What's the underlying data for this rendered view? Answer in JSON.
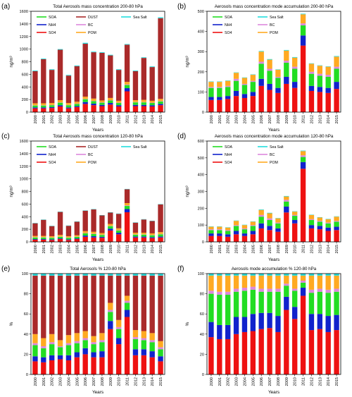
{
  "figure": {
    "background": "#ffffff"
  },
  "colors": {
    "SO4": "#ee1111",
    "NH4": "#1122cc",
    "SOA": "#22dd22",
    "BC": "#dd88dd",
    "POM": "#ffaa22",
    "DUST": "#aa2a2a",
    "Sea Salt": "#22dddd"
  },
  "chart_data": [
    {
      "label": "(a)",
      "type": "bar",
      "stacked": true,
      "title": "Total Aerosols mass concentration 200-80 hPa",
      "xlabel": "Years",
      "ylabel": "ng/m³",
      "ylim": [
        0,
        1600
      ],
      "yticks": [
        0,
        200,
        400,
        600,
        800,
        1000,
        1200,
        1400,
        1600
      ],
      "categories": [
        "2000",
        "2001",
        "2002",
        "2003",
        "2004",
        "2005",
        "2006",
        "2007",
        "2008",
        "2009",
        "2010",
        "2011",
        "2012",
        "2013",
        "2014",
        "2015"
      ],
      "legend": [
        [
          "SOA",
          "DUST",
          "Sea Salt"
        ],
        [
          "NH4",
          "BC",
          ""
        ],
        [
          "SO4",
          "POM",
          ""
        ]
      ],
      "series": [
        {
          "name": "SO4",
          "values": [
            60,
            60,
            65,
            90,
            60,
            80,
            130,
            110,
            95,
            120,
            90,
            330,
            95,
            95,
            90,
            110
          ]
        },
        {
          "name": "NH4",
          "values": [
            15,
            15,
            15,
            20,
            15,
            15,
            30,
            25,
            20,
            25,
            20,
            50,
            20,
            20,
            20,
            20
          ]
        },
        {
          "name": "SOA",
          "values": [
            30,
            30,
            30,
            40,
            35,
            35,
            45,
            40,
            35,
            40,
            35,
            50,
            40,
            40,
            35,
            40
          ]
        },
        {
          "name": "BC",
          "values": [
            5,
            5,
            5,
            5,
            5,
            5,
            5,
            5,
            5,
            5,
            5,
            10,
            5,
            5,
            5,
            5
          ]
        },
        {
          "name": "POM",
          "values": [
            30,
            30,
            30,
            35,
            30,
            30,
            35,
            35,
            30,
            35,
            30,
            40,
            30,
            35,
            30,
            35
          ]
        },
        {
          "name": "DUST",
          "values": [
            510,
            700,
            525,
            800,
            435,
            565,
            840,
            735,
            755,
            675,
            490,
            590,
            460,
            665,
            535,
            1280
          ]
        },
        {
          "name": "Sea Salt",
          "values": [
            10,
            10,
            10,
            10,
            10,
            10,
            15,
            10,
            10,
            10,
            10,
            10,
            10,
            10,
            10,
            15
          ]
        }
      ]
    },
    {
      "label": "(b)",
      "type": "bar",
      "stacked": true,
      "title": "Aerosols mass concentration mode accumulation 200-80 hPa",
      "xlabel": "Years",
      "ylabel": "ng/m³",
      "ylim": [
        0,
        500
      ],
      "yticks": [
        0,
        100,
        200,
        300,
        400,
        500
      ],
      "categories": [
        "2000",
        "2001",
        "2002",
        "2003",
        "2004",
        "2005",
        "2006",
        "2007",
        "2008",
        "2009",
        "2010",
        "2011",
        "2012",
        "2013",
        "2014",
        "2015"
      ],
      "legend": [
        [
          "SOA",
          "Sea Salt"
        ],
        [
          "NH4",
          "BC"
        ],
        [
          "SO4",
          "POM"
        ]
      ],
      "series": [
        {
          "name": "SO4",
          "values": [
            60,
            60,
            65,
            80,
            70,
            80,
            130,
            110,
            95,
            140,
            120,
            330,
            105,
            100,
            95,
            115
          ]
        },
        {
          "name": "NH4",
          "values": [
            15,
            15,
            15,
            25,
            20,
            20,
            35,
            30,
            25,
            35,
            30,
            50,
            25,
            25,
            25,
            35
          ]
        },
        {
          "name": "SOA",
          "values": [
            45,
            45,
            45,
            50,
            45,
            50,
            75,
            65,
            50,
            70,
            65,
            50,
            60,
            55,
            55,
            65
          ]
        },
        {
          "name": "BC",
          "values": [
            5,
            5,
            5,
            10,
            5,
            5,
            10,
            10,
            5,
            10,
            10,
            10,
            10,
            10,
            10,
            10
          ]
        },
        {
          "name": "POM",
          "values": [
            25,
            25,
            25,
            30,
            30,
            30,
            50,
            45,
            35,
            50,
            45,
            45,
            40,
            40,
            40,
            50
          ]
        },
        {
          "name": "Sea Salt",
          "values": [
            2,
            2,
            2,
            2,
            2,
            2,
            3,
            3,
            2,
            3,
            3,
            3,
            2,
            2,
            2,
            3
          ]
        }
      ]
    },
    {
      "label": "(c)",
      "type": "bar",
      "stacked": true,
      "title": "Total Aerosols mass concentration 120-80 hPa",
      "xlabel": "Years",
      "ylabel": "ng/m³",
      "ylim": [
        0,
        1600
      ],
      "yticks": [
        0,
        200,
        400,
        600,
        800,
        1000,
        1200,
        1400,
        1600
      ],
      "categories": [
        "2000",
        "2001",
        "2002",
        "2003",
        "2004",
        "2005",
        "2006",
        "2007",
        "2008",
        "2009",
        "2010",
        "2011",
        "2012",
        "2013",
        "2014",
        "2015"
      ],
      "legend": [
        [
          "SOA",
          "DUST",
          "Sea Salt"
        ],
        [
          "NH4",
          "BC",
          ""
        ],
        [
          "SO4",
          "POM",
          ""
        ]
      ],
      "series": [
        {
          "name": "SO4",
          "values": [
            35,
            35,
            30,
            45,
            30,
            45,
            80,
            70,
            65,
            180,
            120,
            470,
            70,
            70,
            60,
            70
          ]
        },
        {
          "name": "NH4",
          "values": [
            10,
            10,
            10,
            10,
            10,
            10,
            20,
            20,
            15,
            30,
            25,
            50,
            15,
            15,
            15,
            15
          ]
        },
        {
          "name": "SOA",
          "values": [
            25,
            25,
            25,
            25,
            25,
            25,
            35,
            35,
            30,
            40,
            35,
            50,
            30,
            30,
            30,
            35
          ]
        },
        {
          "name": "BC",
          "values": [
            5,
            5,
            5,
            5,
            5,
            5,
            5,
            5,
            5,
            5,
            5,
            10,
            5,
            5,
            5,
            5
          ]
        },
        {
          "name": "POM",
          "values": [
            20,
            20,
            20,
            25,
            20,
            20,
            30,
            30,
            25,
            30,
            30,
            35,
            25,
            25,
            25,
            30
          ]
        },
        {
          "name": "DUST",
          "values": [
            200,
            255,
            160,
            365,
            165,
            215,
            325,
            355,
            280,
            180,
            230,
            220,
            160,
            210,
            195,
            440
          ]
        },
        {
          "name": "Sea Salt",
          "values": [
            5,
            5,
            5,
            5,
            5,
            5,
            5,
            5,
            5,
            5,
            5,
            5,
            5,
            5,
            5,
            5
          ]
        }
      ]
    },
    {
      "label": "(d)",
      "type": "bar",
      "stacked": true,
      "title": "Aerosols mass concentration mode accumulation 120-80 hPa",
      "xlabel": "Years",
      "ylabel": "ng/m³",
      "ylim": [
        0,
        600
      ],
      "yticks": [
        0,
        100,
        200,
        300,
        400,
        500,
        600
      ],
      "categories": [
        "2000",
        "2001",
        "2002",
        "2003",
        "2004",
        "2005",
        "2006",
        "2007",
        "2008",
        "2009",
        "2010",
        "2011",
        "2012",
        "2013",
        "2014",
        "2015"
      ],
      "legend": [
        [
          "SOA",
          "Sea Salt"
        ],
        [
          "NH4",
          "BC"
        ],
        [
          "SO4",
          "POM"
        ]
      ],
      "series": [
        {
          "name": "SO4",
          "values": [
            35,
            35,
            30,
            45,
            35,
            45,
            80,
            70,
            60,
            175,
            110,
            435,
            80,
            75,
            65,
            70
          ]
        },
        {
          "name": "NH4",
          "values": [
            15,
            15,
            15,
            20,
            15,
            20,
            30,
            25,
            20,
            35,
            20,
            40,
            20,
            20,
            20,
            20
          ]
        },
        {
          "name": "SOA",
          "values": [
            20,
            20,
            20,
            30,
            25,
            30,
            40,
            35,
            30,
            30,
            25,
            30,
            30,
            25,
            25,
            30
          ]
        },
        {
          "name": "BC",
          "values": [
            5,
            5,
            5,
            5,
            5,
            5,
            10,
            10,
            5,
            10,
            5,
            10,
            5,
            5,
            5,
            5
          ]
        },
        {
          "name": "POM",
          "values": [
            15,
            15,
            15,
            25,
            20,
            20,
            30,
            30,
            25,
            20,
            20,
            25,
            25,
            20,
            20,
            25
          ]
        },
        {
          "name": "Sea Salt",
          "values": [
            2,
            2,
            2,
            2,
            2,
            2,
            3,
            3,
            2,
            3,
            2,
            3,
            2,
            2,
            2,
            2
          ]
        }
      ]
    },
    {
      "label": "(e)",
      "type": "bar",
      "stacked": true,
      "title": "Total Aerosols % 120-80 hPa",
      "xlabel": "Years",
      "ylabel": "%",
      "ylim": [
        0,
        100
      ],
      "yticks": [
        0,
        20,
        40,
        60,
        80,
        100
      ],
      "categories": [
        "2000",
        "2001",
        "2002",
        "2003",
        "2004",
        "2005",
        "2006",
        "2007",
        "2008",
        "2009",
        "2010",
        "2011",
        "2012",
        "2013",
        "2014",
        "2015"
      ],
      "series": [
        {
          "name": "SO4",
          "values": [
            13,
            12,
            14,
            15,
            14,
            17,
            20,
            17,
            17,
            45,
            30,
            57,
            19,
            19,
            17,
            13
          ]
        },
        {
          "name": "NH4",
          "values": [
            5,
            5,
            5,
            4,
            5,
            5,
            6,
            5,
            6,
            8,
            6,
            7,
            6,
            6,
            6,
            5
          ]
        },
        {
          "name": "SOA",
          "values": [
            11,
            9,
            11,
            8,
            10,
            9,
            8,
            8,
            9,
            9,
            9,
            7,
            10,
            9,
            9,
            7
          ]
        },
        {
          "name": "BC",
          "values": [
            2,
            2,
            2,
            1,
            2,
            2,
            2,
            2,
            2,
            2,
            2,
            2,
            2,
            2,
            2,
            2
          ]
        },
        {
          "name": "POM",
          "values": [
            9,
            8,
            8,
            6,
            8,
            8,
            7,
            6,
            7,
            7,
            7,
            5,
            7,
            7,
            7,
            6
          ]
        },
        {
          "name": "DUST",
          "values": [
            58,
            62,
            58,
            64,
            59,
            57,
            55,
            60,
            57,
            27,
            44,
            20,
            54,
            55,
            57,
            65
          ]
        },
        {
          "name": "Sea Salt",
          "values": [
            2,
            2,
            2,
            2,
            2,
            2,
            2,
            2,
            2,
            2,
            2,
            2,
            2,
            2,
            2,
            2
          ]
        }
      ]
    },
    {
      "label": "(f)",
      "type": "bar",
      "stacked": true,
      "title": "Aerosols mode accumulation % 120-80 hPa",
      "xlabel": "Years",
      "ylabel": "%",
      "ylim": [
        0,
        100
      ],
      "yticks": [
        0,
        20,
        40,
        60,
        80,
        100
      ],
      "categories": [
        "2000",
        "2001",
        "2002",
        "2003",
        "2004",
        "2005",
        "2006",
        "2007",
        "2008",
        "2009",
        "2010",
        "2011",
        "2012",
        "2013",
        "2014",
        "2015"
      ],
      "series": [
        {
          "name": "SO4",
          "values": [
            37,
            35,
            35,
            40,
            42,
            43,
            45,
            46,
            42,
            64,
            55,
            78,
            44,
            45,
            42,
            44
          ]
        },
        {
          "name": "NH4",
          "values": [
            15,
            14,
            14,
            17,
            15,
            17,
            16,
            15,
            16,
            13,
            12,
            8,
            16,
            15,
            16,
            15
          ]
        },
        {
          "name": "SOA",
          "values": [
            28,
            30,
            30,
            25,
            26,
            24,
            21,
            21,
            24,
            11,
            16,
            5,
            21,
            22,
            23,
            23
          ]
        },
        {
          "name": "BC",
          "values": [
            3,
            3,
            3,
            3,
            3,
            3,
            3,
            3,
            3,
            2,
            2,
            2,
            3,
            3,
            3,
            3
          ]
        },
        {
          "name": "POM",
          "values": [
            15,
            16,
            16,
            13,
            12,
            11,
            13,
            13,
            13,
            8,
            13,
            5,
            14,
            13,
            14,
            13
          ]
        },
        {
          "name": "Sea Salt",
          "values": [
            2,
            2,
            2,
            2,
            2,
            2,
            2,
            2,
            2,
            2,
            2,
            2,
            2,
            2,
            2,
            2
          ]
        }
      ]
    }
  ]
}
